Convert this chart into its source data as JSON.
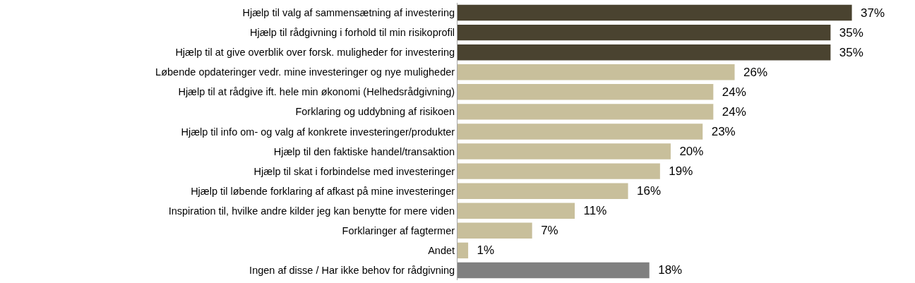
{
  "chart_data": {
    "type": "bar",
    "orientation": "horizontal",
    "tick_labels": "y",
    "value_labels": [
      "37%",
      "35%",
      "35%",
      "26%",
      "24%",
      "24%",
      "23%",
      "20%",
      "19%",
      "16%",
      "11%",
      "7%",
      "1%",
      "18%"
    ],
    "categories": [
      "Hjælp til valg af sammensætning af investering",
      "Hjælp til rådgivning i forhold til min risikoprofil",
      "Hjælp til at give overblik over forsk. muligheder for investering",
      "Løbende opdateringer vedr. mine investeringer og nye muligheder",
      "Hjælp til at rådgive ift. hele min økonomi (Helhedsrådgivning)",
      "Forklaring og uddybning af risikoen",
      "Hjælp til info om- og valg af konkrete investeringer/produkter",
      "Hjælp til den faktiske handel/transaktion",
      "Hjælp til skat i forbindelse med investeringer",
      "Hjælp til løbende forklaring af afkast på mine investeringer",
      "Inspiration til, hvilke andre kilder jeg kan benytte for mere viden",
      "Forklaringer af fagtermer",
      "Andet",
      "Ingen af disse / Har ikke behov for rådgivning"
    ],
    "values": [
      37,
      35,
      35,
      26,
      24,
      24,
      23,
      20,
      19,
      16,
      11,
      7,
      1,
      18
    ],
    "colors": [
      "#4a4330",
      "#4a4330",
      "#4a4330",
      "#c8bf9b",
      "#c8bf9b",
      "#c8bf9b",
      "#c8bf9b",
      "#c8bf9b",
      "#c8bf9b",
      "#c8bf9b",
      "#c8bf9b",
      "#c8bf9b",
      "#c8bf9b",
      "#808080"
    ]
  }
}
